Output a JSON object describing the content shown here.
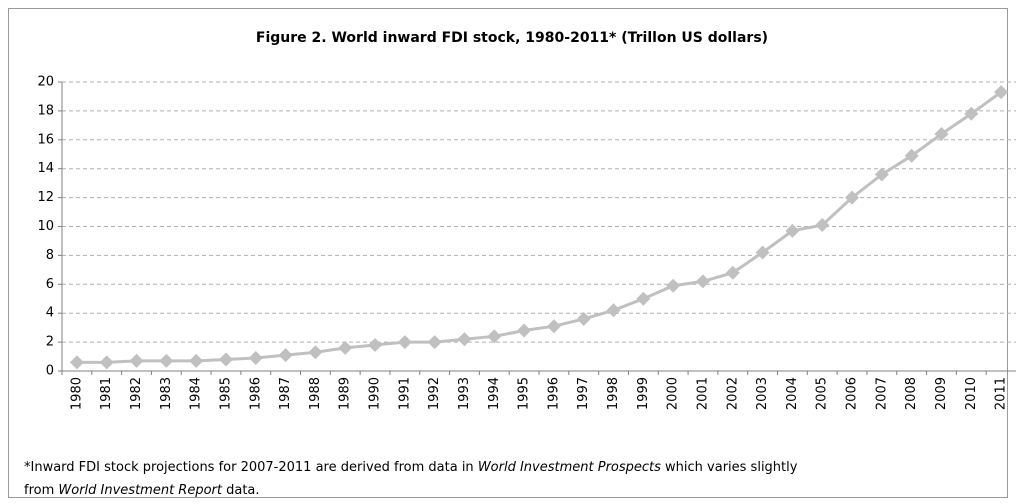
{
  "chart_data": {
    "type": "line",
    "title": "Figure 2.  World inward FDI stock, 1980-2011* (Trillon US dollars)",
    "categories": [
      "1980",
      "1981",
      "1982",
      "1983",
      "1984",
      "1985",
      "1986",
      "1987",
      "1988",
      "1989",
      "1990",
      "1991",
      "1992",
      "1993",
      "1994",
      "1995",
      "1996",
      "1997",
      "1998",
      "1999",
      "2000",
      "2001",
      "2002",
      "2003",
      "2004",
      "2005",
      "2006",
      "2007",
      "2008",
      "2009",
      "2010",
      "2011"
    ],
    "series": [
      {
        "color": "#c0c0c0",
        "values": [
          0.6,
          0.6,
          0.7,
          0.7,
          0.7,
          0.8,
          0.9,
          1.1,
          1.3,
          1.6,
          1.8,
          2.0,
          2.0,
          2.2,
          2.4,
          2.8,
          3.1,
          3.6,
          4.2,
          5.0,
          5.9,
          6.2,
          6.8,
          8.2,
          9.7,
          10.1,
          12.0,
          13.6,
          14.9,
          16.4,
          17.8,
          19.3
        ]
      }
    ],
    "ylim": [
      0,
      20
    ],
    "yticks": [
      0,
      2,
      4,
      6,
      8,
      10,
      12,
      14,
      16,
      18,
      20
    ],
    "grid": true,
    "footnote": [
      "*Inward FDI stock projections for 2007-2011 are derived from data in ",
      "World Investment Prospects",
      " which varies slightly from ",
      "World Investment Report",
      " data."
    ]
  }
}
